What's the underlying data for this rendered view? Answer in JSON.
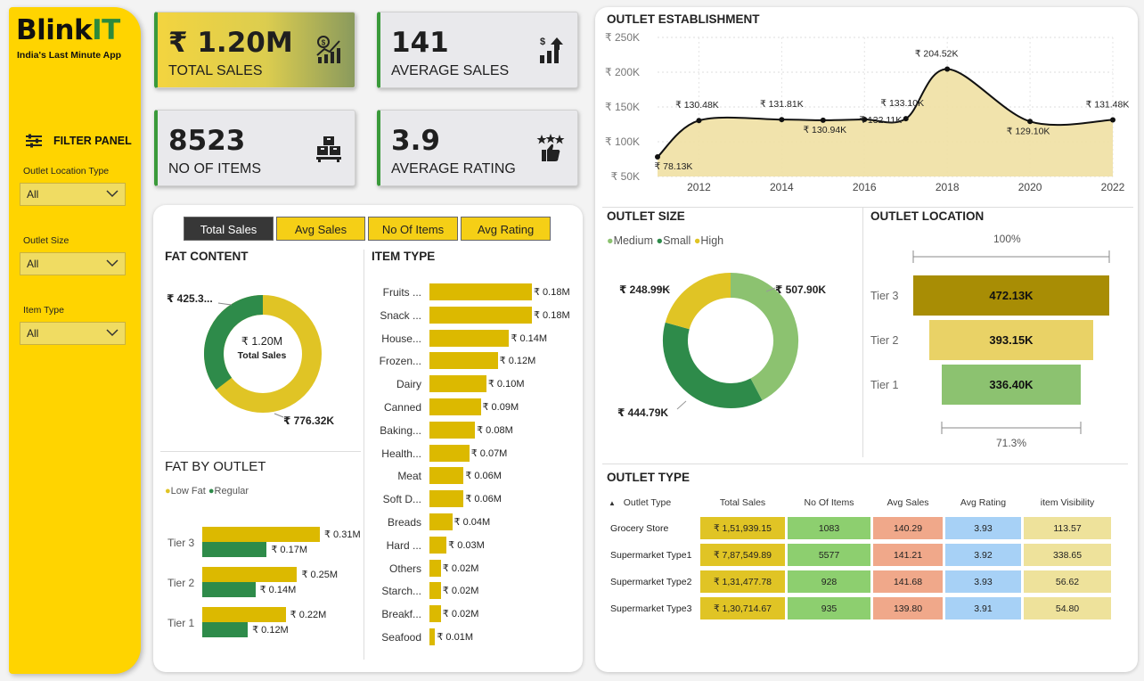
{
  "brand": {
    "name_main": "Blink",
    "name_accent": "IT",
    "tagline": "India's Last Minute App"
  },
  "filter_panel": {
    "title": "FILTER PANEL",
    "filters": [
      {
        "label": "Outlet Location Type",
        "value": "All"
      },
      {
        "label": "Outlet Size",
        "value": "All"
      },
      {
        "label": "Item Type",
        "value": "All"
      }
    ]
  },
  "kpis": [
    {
      "value": "₹ 1.20M",
      "label": "TOTAL SALES",
      "icon": "sales-chart-icon"
    },
    {
      "value": "141",
      "label": "AVERAGE SALES",
      "icon": "growth-chart-icon"
    },
    {
      "value": "8523",
      "label": "NO OF ITEMS",
      "icon": "stacked-boxes-icon"
    },
    {
      "value": "3.9",
      "label": "AVERAGE RATING",
      "icon": "stars-thumbs-up-icon"
    }
  ],
  "tabs": [
    "Total Sales",
    "Avg Sales",
    "No Of Items",
    "Avg Rating"
  ],
  "active_tab": "Total Sales",
  "colors": {
    "yellow": "#f5cf16",
    "gold": "#e0c425",
    "green": "#2e8b4a",
    "light_green": "#8cc270",
    "dark_gold": "#a88d05",
    "accent_border": "#3a9a3a"
  },
  "fat_content": {
    "title": "FAT CONTENT",
    "center_value": "₹ 1.20M",
    "center_label": "Total Sales",
    "label_green": "₹ 425.3...",
    "label_yellow": "₹ 776.32K"
  },
  "fat_by_outlet": {
    "title": "FAT BY OUTLET",
    "legend": [
      "Low Fat",
      "Regular"
    ],
    "rows": [
      {
        "tier": "Tier 3",
        "low_label": "₹ 0.31M",
        "reg_label": "₹ 0.17M"
      },
      {
        "tier": "Tier 2",
        "low_label": "₹ 0.25M",
        "reg_label": "₹ 0.14M"
      },
      {
        "tier": "Tier 1",
        "low_label": "₹ 0.22M",
        "reg_label": "₹ 0.12M"
      }
    ]
  },
  "item_type": {
    "title": "ITEM TYPE",
    "items": [
      {
        "name": "Fruits ...",
        "label": "₹ 0.18M"
      },
      {
        "name": "Snack ...",
        "label": "₹ 0.18M"
      },
      {
        "name": "House...",
        "label": "₹ 0.14M"
      },
      {
        "name": "Frozen...",
        "label": "₹ 0.12M"
      },
      {
        "name": "Dairy",
        "label": "₹ 0.10M"
      },
      {
        "name": "Canned",
        "label": "₹ 0.09M"
      },
      {
        "name": "Baking...",
        "label": "₹ 0.08M"
      },
      {
        "name": "Health...",
        "label": "₹ 0.07M"
      },
      {
        "name": "Meat",
        "label": "₹ 0.06M"
      },
      {
        "name": "Soft D...",
        "label": "₹ 0.06M"
      },
      {
        "name": "Breads",
        "label": "₹ 0.04M"
      },
      {
        "name": "Hard ...",
        "label": "₹ 0.03M"
      },
      {
        "name": "Others",
        "label": "₹ 0.02M"
      },
      {
        "name": "Starch...",
        "label": "₹ 0.02M"
      },
      {
        "name": "Breakf...",
        "label": "₹ 0.02M"
      },
      {
        "name": "Seafood",
        "label": "₹ 0.01M"
      }
    ]
  },
  "outlet_establishment": {
    "title": "OUTLET ESTABLISHMENT",
    "y_ticks": [
      "₹ 250K",
      "₹ 200K",
      "₹ 150K",
      "₹ 100K",
      "₹ 50K"
    ],
    "x_ticks": [
      "2012",
      "2014",
      "2016",
      "2018",
      "2020",
      "2022"
    ],
    "labels": [
      "₹ 78.13K",
      "₹ 130.48K",
      "₹ 131.81K",
      "₹ 130.94K",
      "₹ 132.11K",
      "₹ 133.10K",
      "₹ 204.52K",
      "₹ 129.10K",
      "₹ 131.48K"
    ]
  },
  "outlet_size": {
    "title": "OUTLET SIZE",
    "legend": [
      "Medium",
      "Small",
      "High"
    ],
    "labels": {
      "medium": "₹ 507.90K",
      "small": "₹ 444.79K",
      "high": "₹ 248.99K"
    }
  },
  "outlet_location": {
    "title": "OUTLET LOCATION",
    "top_pct": "100%",
    "bottom_pct": "71.3%",
    "tiers": [
      {
        "tier": "Tier 3",
        "label": "472.13K"
      },
      {
        "tier": "Tier 2",
        "label": "393.15K"
      },
      {
        "tier": "Tier 1",
        "label": "336.40K"
      }
    ]
  },
  "outlet_type": {
    "title": "OUTLET TYPE",
    "columns": [
      "Outlet Type",
      "Total Sales",
      "No Of Items",
      "Avg Sales",
      "Avg Rating",
      "item Visibility"
    ],
    "rows": [
      [
        "Grocery Store",
        "₹ 1,51,939.15",
        "1083",
        "140.29",
        "3.93",
        "113.57"
      ],
      [
        "Supermarket Type1",
        "₹ 7,87,549.89",
        "5577",
        "141.21",
        "3.92",
        "338.65"
      ],
      [
        "Supermarket Type2",
        "₹ 1,31,477.78",
        "928",
        "141.68",
        "3.93",
        "56.62"
      ],
      [
        "Supermarket Type3",
        "₹ 1,30,714.67",
        "935",
        "139.80",
        "3.91",
        "54.80"
      ]
    ]
  },
  "chart_data": [
    {
      "type": "line",
      "title": "OUTLET ESTABLISHMENT",
      "x": [
        2011,
        2012,
        2014,
        2015,
        2016,
        2017,
        2018,
        2020,
        2022
      ],
      "y": [
        78.13,
        130.48,
        131.81,
        130.94,
        132.11,
        133.1,
        204.52,
        129.1,
        131.48
      ],
      "ylabel_unit": "₹ K",
      "ylim": [
        50,
        250
      ],
      "xlim": [
        2011,
        2022
      ]
    },
    {
      "type": "pie",
      "title": "FAT CONTENT",
      "categories": [
        "Regular",
        "Low Fat"
      ],
      "values": [
        425.3,
        776.32
      ]
    },
    {
      "type": "pie",
      "title": "OUTLET SIZE",
      "categories": [
        "Medium",
        "Small",
        "High"
      ],
      "values": [
        507.9,
        444.79,
        248.99
      ]
    },
    {
      "type": "bar",
      "title": "ITEM TYPE",
      "categories": [
        "Fruits ...",
        "Snack ...",
        "House...",
        "Frozen...",
        "Dairy",
        "Canned",
        "Baking...",
        "Health...",
        "Meat",
        "Soft D...",
        "Breads",
        "Hard ...",
        "Others",
        "Starch...",
        "Breakf...",
        "Seafood"
      ],
      "values": [
        0.18,
        0.18,
        0.14,
        0.12,
        0.1,
        0.09,
        0.08,
        0.07,
        0.06,
        0.06,
        0.04,
        0.03,
        0.02,
        0.02,
        0.02,
        0.01
      ]
    },
    {
      "type": "bar",
      "title": "FAT BY OUTLET",
      "categories": [
        "Tier 3",
        "Tier 2",
        "Tier 1"
      ],
      "series": [
        {
          "name": "Low Fat",
          "values": [
            0.31,
            0.25,
            0.22
          ]
        },
        {
          "name": "Regular",
          "values": [
            0.17,
            0.14,
            0.12
          ]
        }
      ]
    },
    {
      "type": "bar",
      "title": "OUTLET LOCATION",
      "categories": [
        "Tier 3",
        "Tier 2",
        "Tier 1"
      ],
      "values": [
        472.13,
        393.15,
        336.4
      ]
    }
  ]
}
